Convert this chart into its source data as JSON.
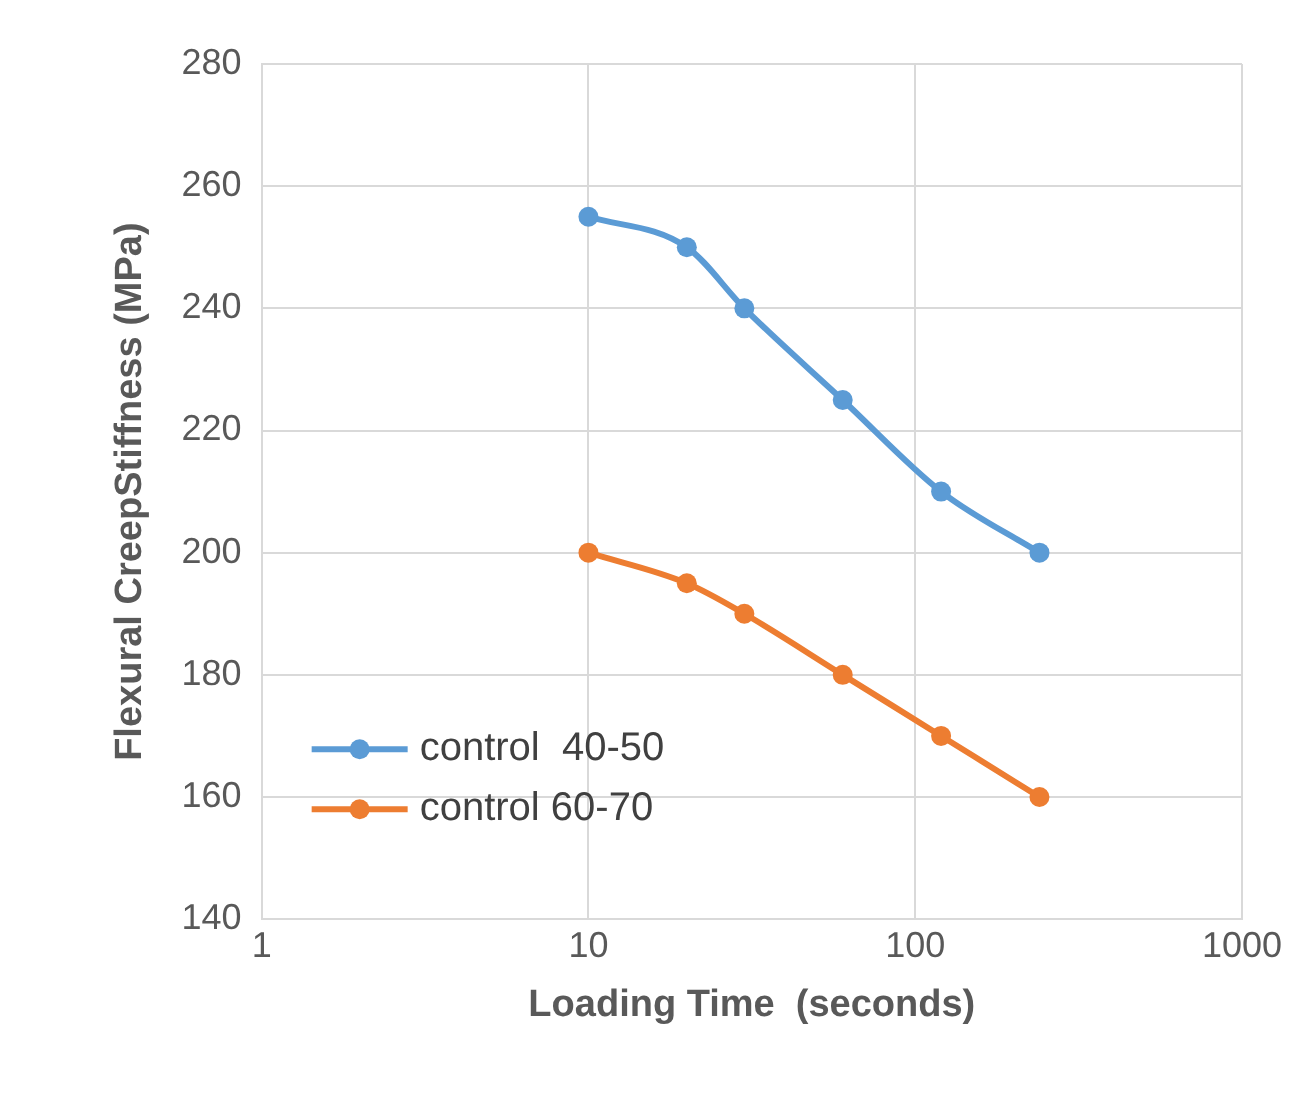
{
  "chart_data": {
    "type": "line",
    "xlabel": "Loading Time  (seconds)",
    "ylabel": "Flexural CreepStiffness (MPa)",
    "x": [
      10,
      20,
      30,
      60,
      120,
      240
    ],
    "series": [
      {
        "name": "control  40-50",
        "color": "#5b9bd5",
        "values": [
          255,
          250,
          240,
          225,
          210,
          200
        ]
      },
      {
        "name": "control 60-70",
        "color": "#ed7d31",
        "values": [
          200,
          195,
          190,
          180,
          170,
          160
        ]
      }
    ],
    "log": "x",
    "xlim": [
      1,
      1000
    ],
    "xticks": [
      1,
      10,
      100,
      1000
    ],
    "ylim": [
      140,
      280
    ],
    "yticks": [
      140,
      160,
      180,
      200,
      220,
      240,
      260,
      280
    ],
    "grid": true,
    "legend": "bottom left",
    "marker": "circle",
    "line_style": "solid"
  }
}
